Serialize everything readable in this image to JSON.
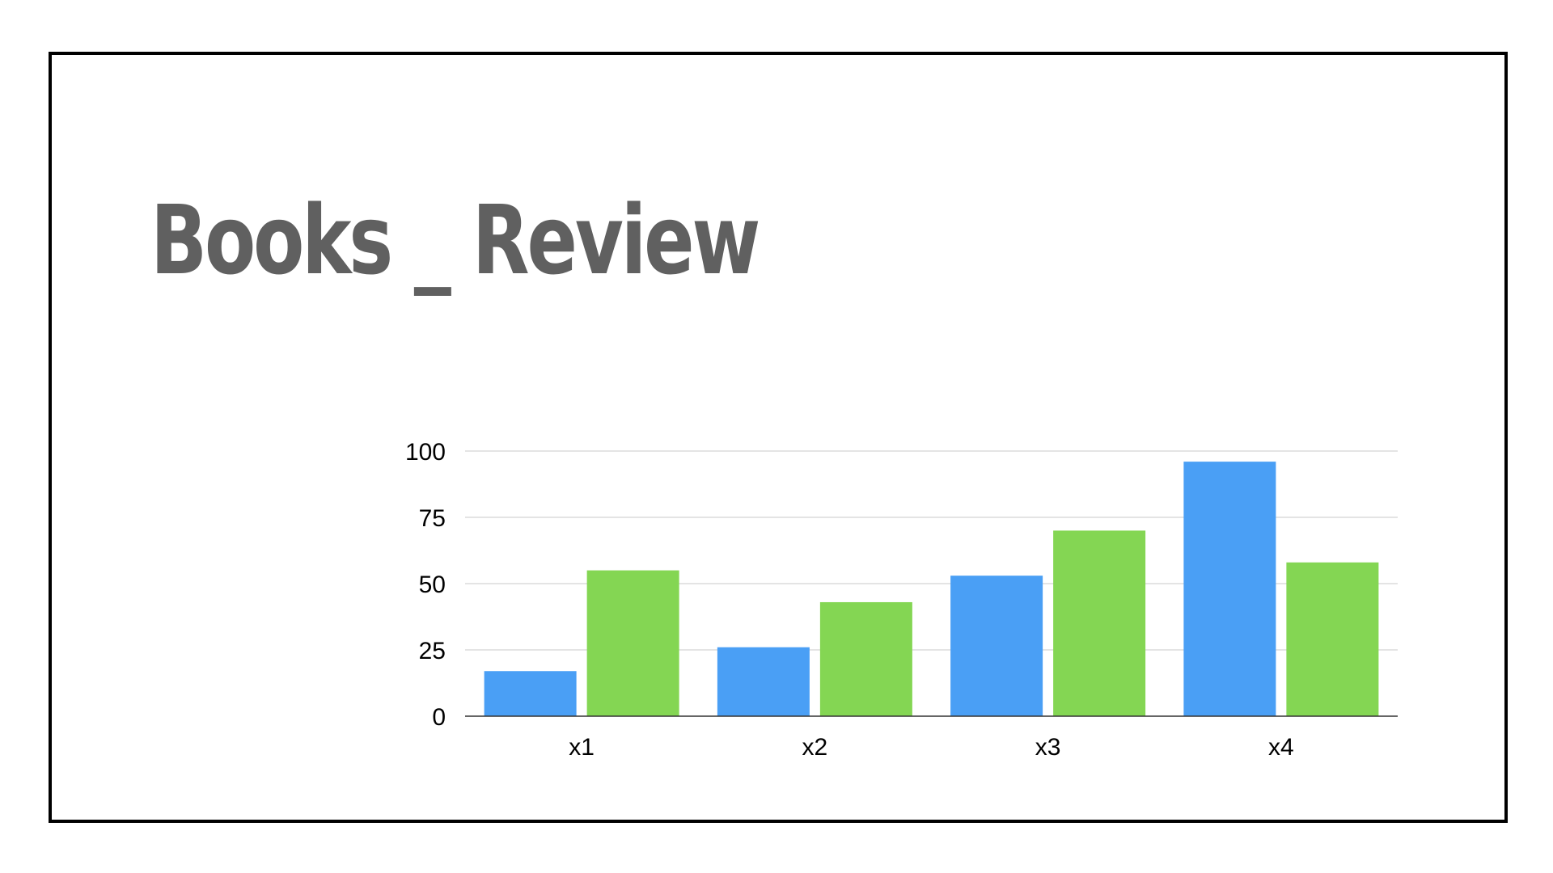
{
  "slide": {
    "title": "Books _ Review"
  },
  "chart_data": {
    "type": "bar",
    "categories": [
      "x1",
      "x2",
      "x3",
      "x4"
    ],
    "series": [
      {
        "values": [
          17,
          26,
          53,
          96
        ],
        "color": "#4A9FF5"
      },
      {
        "values": [
          55,
          43,
          70,
          58
        ],
        "color": "#84D653"
      }
    ],
    "ylim": [
      0,
      100
    ],
    "yticks": [
      "0",
      "25",
      "50",
      "75",
      "100"
    ],
    "grid": true,
    "legend": "none"
  }
}
